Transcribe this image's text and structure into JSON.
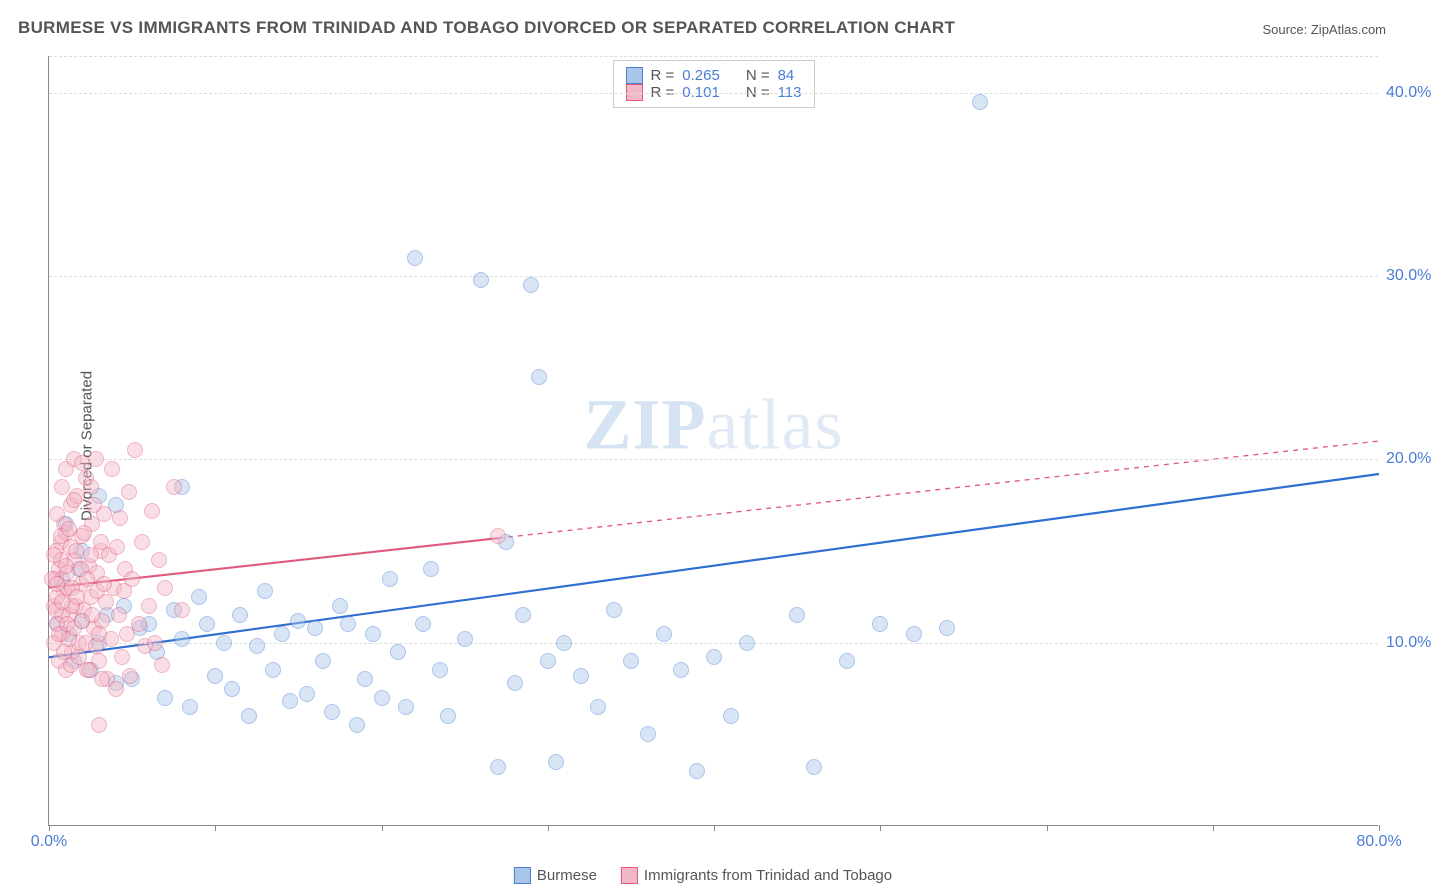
{
  "title": "BURMESE VS IMMIGRANTS FROM TRINIDAD AND TOBAGO DIVORCED OR SEPARATED CORRELATION CHART",
  "source_label": "Source: ZipAtlas.com",
  "y_axis_label": "Divorced or Separated",
  "watermark_a": "ZIP",
  "watermark_b": "atlas",
  "chart": {
    "type": "scatter",
    "xlim": [
      0,
      80
    ],
    "ylim": [
      0,
      42
    ],
    "xticks": [
      {
        "v": 0,
        "label": "0.0%"
      },
      {
        "v": 80,
        "label": "80.0%"
      }
    ],
    "yticks": [
      {
        "v": 10,
        "label": "10.0%"
      },
      {
        "v": 20,
        "label": "20.0%"
      },
      {
        "v": 30,
        "label": "30.0%"
      },
      {
        "v": 40,
        "label": "40.0%"
      }
    ],
    "gridlines_y": [
      10,
      20,
      30,
      40,
      42
    ],
    "background_color": "#ffffff",
    "grid_color": "#dddddd",
    "axis_color": "#888888",
    "tick_label_color": "#4a7dd6",
    "marker_radius": 8,
    "marker_opacity": 0.45,
    "legend_top": [
      {
        "swatch_fill": "#a9c6e8",
        "swatch_border": "#4a7dd6",
        "r_label": "R =",
        "r_value": "0.265",
        "n_label": "N =",
        "n_value": "84"
      },
      {
        "swatch_fill": "#f3b8c7",
        "swatch_border": "#e05a7e",
        "r_label": "R =",
        "r_value": "0.101",
        "n_label": "N =",
        "n_value": "113"
      }
    ],
    "legend_bottom": [
      {
        "swatch_fill": "#a9c6e8",
        "swatch_border": "#4a7dd6",
        "label": "Burmese"
      },
      {
        "swatch_fill": "#f3b8c7",
        "swatch_border": "#e05a7e",
        "label": "Immigrants from Trinidad and Tobago"
      }
    ],
    "series": [
      {
        "name": "Burmese",
        "color_fill": "#a9c6e8",
        "color_border": "#4a7dd6",
        "trend": {
          "color": "#2f6fd0",
          "width": 2.2,
          "x1": 0,
          "y1": 9.2,
          "x2": 80,
          "y2": 19.2,
          "solid_until_x": 80
        },
        "points": [
          [
            1.2,
            10.5
          ],
          [
            1.5,
            9.0
          ],
          [
            2.0,
            11.2
          ],
          [
            2.5,
            8.5
          ],
          [
            3.0,
            10.0
          ],
          [
            3.5,
            11.5
          ],
          [
            4.0,
            7.8
          ],
          [
            4.5,
            12.0
          ],
          [
            5.0,
            8.0
          ],
          [
            5.5,
            10.8
          ],
          [
            6.0,
            11.0
          ],
          [
            6.5,
            9.5
          ],
          [
            7.0,
            7.0
          ],
          [
            7.5,
            11.8
          ],
          [
            8.0,
            10.2
          ],
          [
            8.5,
            6.5
          ],
          [
            9.0,
            12.5
          ],
          [
            9.5,
            11.0
          ],
          [
            10.0,
            8.2
          ],
          [
            10.5,
            10.0
          ],
          [
            11.0,
            7.5
          ],
          [
            11.5,
            11.5
          ],
          [
            12.0,
            6.0
          ],
          [
            12.5,
            9.8
          ],
          [
            13.0,
            12.8
          ],
          [
            13.5,
            8.5
          ],
          [
            14.0,
            10.5
          ],
          [
            14.5,
            6.8
          ],
          [
            15.0,
            11.2
          ],
          [
            15.5,
            7.2
          ],
          [
            16.0,
            10.8
          ],
          [
            16.5,
            9.0
          ],
          [
            17.0,
            6.2
          ],
          [
            17.5,
            12.0
          ],
          [
            18.0,
            11.0
          ],
          [
            18.5,
            5.5
          ],
          [
            19.0,
            8.0
          ],
          [
            19.5,
            10.5
          ],
          [
            20.0,
            7.0
          ],
          [
            20.5,
            13.5
          ],
          [
            21.0,
            9.5
          ],
          [
            21.5,
            6.5
          ],
          [
            22.0,
            31.0
          ],
          [
            22.5,
            11.0
          ],
          [
            23.0,
            14.0
          ],
          [
            23.5,
            8.5
          ],
          [
            24.0,
            6.0
          ],
          [
            25.0,
            10.2
          ],
          [
            26.0,
            29.8
          ],
          [
            27.0,
            3.2
          ],
          [
            27.5,
            15.5
          ],
          [
            28.0,
            7.8
          ],
          [
            28.5,
            11.5
          ],
          [
            29.0,
            29.5
          ],
          [
            29.5,
            24.5
          ],
          [
            30.0,
            9.0
          ],
          [
            30.5,
            3.5
          ],
          [
            31.0,
            10.0
          ],
          [
            32.0,
            8.2
          ],
          [
            33.0,
            6.5
          ],
          [
            34.0,
            11.8
          ],
          [
            35.0,
            9.0
          ],
          [
            36.0,
            5.0
          ],
          [
            37.0,
            10.5
          ],
          [
            38.0,
            8.5
          ],
          [
            39.0,
            3.0
          ],
          [
            40.0,
            9.2
          ],
          [
            41.0,
            6.0
          ],
          [
            42.0,
            10.0
          ],
          [
            45.0,
            11.5
          ],
          [
            46.0,
            3.2
          ],
          [
            48.0,
            9.0
          ],
          [
            50.0,
            11.0
          ],
          [
            52.0,
            10.5
          ],
          [
            54.0,
            10.8
          ],
          [
            56.0,
            39.5
          ],
          [
            8.0,
            18.5
          ],
          [
            4.0,
            17.5
          ],
          [
            2.0,
            15.0
          ],
          [
            1.0,
            16.5
          ],
          [
            0.8,
            13.5
          ],
          [
            1.8,
            14.0
          ],
          [
            3.0,
            18.0
          ],
          [
            0.5,
            11.0
          ]
        ]
      },
      {
        "name": "Immigrants from Trinidad and Tobago",
        "color_fill": "#f3b8c7",
        "color_border": "#e05a7e",
        "trend": {
          "color": "#e05a7e",
          "width": 2.2,
          "x1": 0,
          "y1": 13.0,
          "x2": 80,
          "y2": 21.0,
          "solid_until_x": 27
        },
        "points": [
          [
            0.3,
            12.0
          ],
          [
            0.4,
            13.5
          ],
          [
            0.5,
            11.0
          ],
          [
            0.6,
            14.0
          ],
          [
            0.7,
            15.5
          ],
          [
            0.8,
            10.5
          ],
          [
            0.9,
            12.8
          ],
          [
            1.0,
            16.0
          ],
          [
            1.1,
            13.0
          ],
          [
            1.2,
            11.5
          ],
          [
            1.3,
            17.5
          ],
          [
            1.4,
            9.5
          ],
          [
            1.5,
            14.5
          ],
          [
            1.6,
            12.0
          ],
          [
            1.7,
            18.0
          ],
          [
            1.8,
            10.0
          ],
          [
            1.9,
            13.2
          ],
          [
            2.0,
            15.8
          ],
          [
            2.1,
            11.8
          ],
          [
            2.2,
            19.0
          ],
          [
            2.3,
            8.5
          ],
          [
            2.4,
            14.2
          ],
          [
            2.5,
            12.5
          ],
          [
            2.6,
            16.5
          ],
          [
            2.7,
            10.8
          ],
          [
            2.8,
            20.0
          ],
          [
            2.9,
            13.8
          ],
          [
            3.0,
            9.0
          ],
          [
            3.1,
            15.0
          ],
          [
            3.2,
            11.2
          ],
          [
            3.3,
            17.0
          ],
          [
            3.4,
            12.2
          ],
          [
            3.5,
            8.0
          ],
          [
            3.6,
            14.8
          ],
          [
            3.7,
            10.2
          ],
          [
            3.8,
            19.5
          ],
          [
            3.9,
            13.0
          ],
          [
            4.0,
            7.5
          ],
          [
            4.1,
            15.2
          ],
          [
            4.2,
            11.5
          ],
          [
            4.3,
            16.8
          ],
          [
            4.4,
            9.2
          ],
          [
            4.5,
            12.8
          ],
          [
            4.6,
            14.0
          ],
          [
            4.7,
            10.5
          ],
          [
            4.8,
            18.2
          ],
          [
            4.9,
            8.2
          ],
          [
            5.0,
            13.5
          ],
          [
            5.2,
            20.5
          ],
          [
            5.4,
            11.0
          ],
          [
            5.6,
            15.5
          ],
          [
            5.8,
            9.8
          ],
          [
            6.0,
            12.0
          ],
          [
            6.2,
            17.2
          ],
          [
            6.4,
            10.0
          ],
          [
            6.6,
            14.5
          ],
          [
            6.8,
            8.8
          ],
          [
            7.0,
            13.0
          ],
          [
            7.5,
            18.5
          ],
          [
            8.0,
            11.8
          ],
          [
            0.2,
            13.5
          ],
          [
            0.3,
            10.0
          ],
          [
            0.4,
            15.0
          ],
          [
            0.5,
            12.5
          ],
          [
            0.6,
            9.0
          ],
          [
            0.7,
            14.5
          ],
          [
            0.8,
            11.5
          ],
          [
            0.9,
            16.5
          ],
          [
            1.0,
            8.5
          ],
          [
            1.1,
            13.8
          ],
          [
            1.2,
            10.2
          ],
          [
            1.3,
            15.2
          ],
          [
            1.4,
            12.0
          ],
          [
            1.5,
            17.8
          ],
          [
            1.0,
            19.5
          ],
          [
            1.5,
            20.0
          ],
          [
            2.0,
            19.8
          ],
          [
            2.5,
            18.5
          ],
          [
            0.5,
            17.0
          ],
          [
            0.8,
            18.5
          ],
          [
            3.0,
            5.5
          ],
          [
            0.3,
            14.8
          ],
          [
            0.4,
            11.8
          ],
          [
            0.5,
            13.2
          ],
          [
            0.6,
            10.5
          ],
          [
            0.7,
            15.8
          ],
          [
            0.8,
            12.2
          ],
          [
            0.9,
            9.5
          ],
          [
            1.0,
            14.2
          ],
          [
            1.1,
            11.0
          ],
          [
            1.2,
            16.2
          ],
          [
            1.3,
            8.8
          ],
          [
            1.4,
            13.0
          ],
          [
            1.5,
            10.8
          ],
          [
            1.6,
            15.0
          ],
          [
            1.7,
            12.5
          ],
          [
            1.8,
            9.2
          ],
          [
            1.9,
            14.0
          ],
          [
            2.0,
            11.2
          ],
          [
            2.1,
            16.0
          ],
          [
            2.2,
            10.0
          ],
          [
            2.3,
            13.5
          ],
          [
            2.4,
            8.5
          ],
          [
            2.5,
            14.8
          ],
          [
            2.6,
            11.5
          ],
          [
            2.7,
            17.5
          ],
          [
            2.8,
            9.8
          ],
          [
            2.9,
            12.8
          ],
          [
            3.0,
            10.5
          ],
          [
            3.1,
            15.5
          ],
          [
            3.2,
            8.0
          ],
          [
            3.3,
            13.2
          ],
          [
            27.0,
            15.8
          ]
        ]
      }
    ]
  }
}
